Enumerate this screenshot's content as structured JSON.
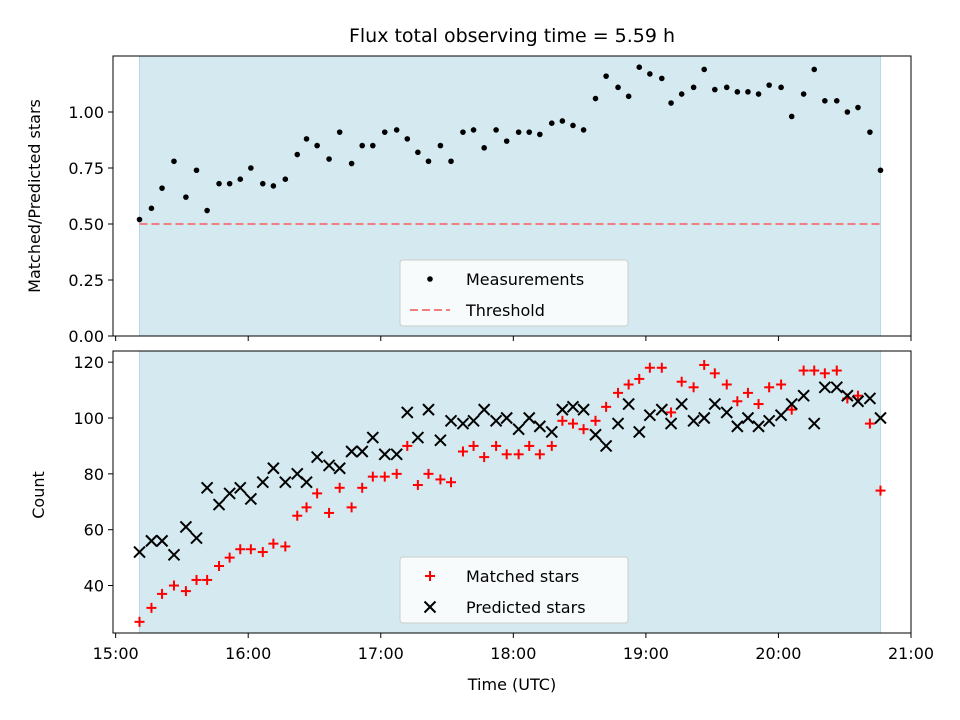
{
  "chart_data": [
    {
      "type": "scatter",
      "title": "Flux total observing time = 5.59 h",
      "xlabel": "",
      "ylabel": "Matched/Predicted stars",
      "x_unit": "hours (UTC clock time)",
      "xlim": [
        14.98,
        21.0
      ],
      "ylim": [
        0,
        1.25
      ],
      "yticks": [
        0.0,
        0.25,
        0.5,
        0.75,
        1.0
      ],
      "yticklabels": [
        "0.00",
        "0.25",
        "0.50",
        "0.75",
        "1.00"
      ],
      "shaded_span": [
        15.18,
        20.77
      ],
      "shaded_color": "#d4eaf0",
      "legend_position": "lower center",
      "series": [
        {
          "name": "Measurements",
          "marker": "dot",
          "color": "#000000",
          "points": [
            [
              15.18,
              0.52
            ],
            [
              15.27,
              0.57
            ],
            [
              15.35,
              0.66
            ],
            [
              15.44,
              0.78
            ],
            [
              15.53,
              0.62
            ],
            [
              15.61,
              0.74
            ],
            [
              15.69,
              0.56
            ],
            [
              15.78,
              0.68
            ],
            [
              15.86,
              0.68
            ],
            [
              15.94,
              0.7
            ],
            [
              16.02,
              0.75
            ],
            [
              16.11,
              0.68
            ],
            [
              16.19,
              0.67
            ],
            [
              16.28,
              0.7
            ],
            [
              16.37,
              0.81
            ],
            [
              16.44,
              0.88
            ],
            [
              16.52,
              0.85
            ],
            [
              16.61,
              0.79
            ],
            [
              16.69,
              0.91
            ],
            [
              16.78,
              0.77
            ],
            [
              16.86,
              0.85
            ],
            [
              16.94,
              0.85
            ],
            [
              17.03,
              0.91
            ],
            [
              17.12,
              0.92
            ],
            [
              17.2,
              0.88
            ],
            [
              17.28,
              0.82
            ],
            [
              17.36,
              0.78
            ],
            [
              17.45,
              0.85
            ],
            [
              17.53,
              0.78
            ],
            [
              17.62,
              0.91
            ],
            [
              17.7,
              0.92
            ],
            [
              17.78,
              0.84
            ],
            [
              17.87,
              0.92
            ],
            [
              17.95,
              0.87
            ],
            [
              18.04,
              0.91
            ],
            [
              18.12,
              0.91
            ],
            [
              18.2,
              0.9
            ],
            [
              18.29,
              0.95
            ],
            [
              18.37,
              0.96
            ],
            [
              18.45,
              0.94
            ],
            [
              18.53,
              0.92
            ],
            [
              18.62,
              1.06
            ],
            [
              18.7,
              1.16
            ],
            [
              18.79,
              1.11
            ],
            [
              18.87,
              1.07
            ],
            [
              18.95,
              1.2
            ],
            [
              19.03,
              1.17
            ],
            [
              19.12,
              1.15
            ],
            [
              19.19,
              1.04
            ],
            [
              19.27,
              1.08
            ],
            [
              19.36,
              1.11
            ],
            [
              19.44,
              1.19
            ],
            [
              19.52,
              1.1
            ],
            [
              19.61,
              1.11
            ],
            [
              19.69,
              1.09
            ],
            [
              19.77,
              1.09
            ],
            [
              19.85,
              1.08
            ],
            [
              19.93,
              1.12
            ],
            [
              20.02,
              1.11
            ],
            [
              20.1,
              0.98
            ],
            [
              20.19,
              1.08
            ],
            [
              20.27,
              1.19
            ],
            [
              20.35,
              1.05
            ],
            [
              20.44,
              1.05
            ],
            [
              20.52,
              1.0
            ],
            [
              20.6,
              1.02
            ],
            [
              20.69,
              0.91
            ],
            [
              20.77,
              0.74
            ]
          ]
        },
        {
          "name": "Threshold",
          "marker": "dashed-line",
          "color": "#f08080",
          "x": [
            15.18,
            20.77
          ],
          "y": [
            0.5,
            0.5
          ]
        }
      ]
    },
    {
      "type": "scatter",
      "title": "",
      "xlabel": "Time (UTC)",
      "ylabel": "Count",
      "x_unit": "hours (UTC clock time)",
      "xlim": [
        14.98,
        21.0
      ],
      "ylim": [
        23,
        124
      ],
      "xticks": [
        15,
        16,
        17,
        18,
        19,
        20,
        21
      ],
      "xticklabels": [
        "15:00",
        "16:00",
        "17:00",
        "18:00",
        "19:00",
        "20:00",
        "21:00"
      ],
      "yticks": [
        40,
        60,
        80,
        100,
        120
      ],
      "yticklabels": [
        "40",
        "60",
        "80",
        "100",
        "120"
      ],
      "shaded_span": [
        15.18,
        20.77
      ],
      "shaded_color": "#d4eaf0",
      "legend_position": "lower center",
      "series": [
        {
          "name": "Matched stars",
          "marker": "plus",
          "color": "#ff0000",
          "points": [
            [
              15.18,
              27
            ],
            [
              15.27,
              32
            ],
            [
              15.35,
              37
            ],
            [
              15.44,
              40
            ],
            [
              15.53,
              38
            ],
            [
              15.61,
              42
            ],
            [
              15.69,
              42
            ],
            [
              15.78,
              47
            ],
            [
              15.86,
              50
            ],
            [
              15.94,
              53
            ],
            [
              16.02,
              53
            ],
            [
              16.11,
              52
            ],
            [
              16.19,
              55
            ],
            [
              16.28,
              54
            ],
            [
              16.37,
              65
            ],
            [
              16.44,
              68
            ],
            [
              16.52,
              73
            ],
            [
              16.61,
              66
            ],
            [
              16.69,
              75
            ],
            [
              16.78,
              68
            ],
            [
              16.86,
              75
            ],
            [
              16.94,
              79
            ],
            [
              17.03,
              79
            ],
            [
              17.12,
              80
            ],
            [
              17.2,
              90
            ],
            [
              17.28,
              76
            ],
            [
              17.36,
              80
            ],
            [
              17.45,
              78
            ],
            [
              17.53,
              77
            ],
            [
              17.62,
              88
            ],
            [
              17.7,
              90
            ],
            [
              17.78,
              86
            ],
            [
              17.87,
              90
            ],
            [
              17.95,
              87
            ],
            [
              18.04,
              87
            ],
            [
              18.12,
              90
            ],
            [
              18.2,
              87
            ],
            [
              18.29,
              90
            ],
            [
              18.37,
              99
            ],
            [
              18.45,
              98
            ],
            [
              18.53,
              96
            ],
            [
              18.62,
              99
            ],
            [
              18.7,
              104
            ],
            [
              18.79,
              109
            ],
            [
              18.87,
              112
            ],
            [
              18.95,
              114
            ],
            [
              19.03,
              118
            ],
            [
              19.12,
              118
            ],
            [
              19.19,
              102
            ],
            [
              19.27,
              113
            ],
            [
              19.36,
              111
            ],
            [
              19.44,
              119
            ],
            [
              19.52,
              116
            ],
            [
              19.61,
              112
            ],
            [
              19.69,
              106
            ],
            [
              19.77,
              109
            ],
            [
              19.85,
              105
            ],
            [
              19.93,
              111
            ],
            [
              20.02,
              112
            ],
            [
              20.1,
              103
            ],
            [
              20.19,
              117
            ],
            [
              20.27,
              117
            ],
            [
              20.35,
              116
            ],
            [
              20.44,
              117
            ],
            [
              20.52,
              107
            ],
            [
              20.6,
              108
            ],
            [
              20.69,
              98
            ],
            [
              20.77,
              74
            ]
          ]
        },
        {
          "name": "Predicted stars",
          "marker": "x",
          "color": "#000000",
          "points": [
            [
              15.18,
              52
            ],
            [
              15.27,
              56
            ],
            [
              15.35,
              56
            ],
            [
              15.44,
              51
            ],
            [
              15.53,
              61
            ],
            [
              15.61,
              57
            ],
            [
              15.69,
              75
            ],
            [
              15.78,
              69
            ],
            [
              15.86,
              73
            ],
            [
              15.94,
              75
            ],
            [
              16.02,
              71
            ],
            [
              16.11,
              77
            ],
            [
              16.19,
              82
            ],
            [
              16.28,
              77
            ],
            [
              16.37,
              80
            ],
            [
              16.44,
              77
            ],
            [
              16.52,
              86
            ],
            [
              16.61,
              83
            ],
            [
              16.69,
              82
            ],
            [
              16.78,
              88
            ],
            [
              16.86,
              88
            ],
            [
              16.94,
              93
            ],
            [
              17.03,
              87
            ],
            [
              17.12,
              87
            ],
            [
              17.2,
              102
            ],
            [
              17.28,
              93
            ],
            [
              17.36,
              103
            ],
            [
              17.45,
              92
            ],
            [
              17.53,
              99
            ],
            [
              17.62,
              98
            ],
            [
              17.7,
              99
            ],
            [
              17.78,
              103
            ],
            [
              17.87,
              99
            ],
            [
              17.95,
              100
            ],
            [
              18.04,
              96
            ],
            [
              18.12,
              100
            ],
            [
              18.2,
              97
            ],
            [
              18.29,
              95
            ],
            [
              18.37,
              103
            ],
            [
              18.45,
              104
            ],
            [
              18.53,
              103
            ],
            [
              18.62,
              94
            ],
            [
              18.7,
              90
            ],
            [
              18.79,
              98
            ],
            [
              18.87,
              105
            ],
            [
              18.95,
              95
            ],
            [
              19.03,
              101
            ],
            [
              19.12,
              103
            ],
            [
              19.19,
              98
            ],
            [
              19.27,
              105
            ],
            [
              19.36,
              99
            ],
            [
              19.44,
              100
            ],
            [
              19.52,
              105
            ],
            [
              19.61,
              102
            ],
            [
              19.69,
              97
            ],
            [
              19.77,
              100
            ],
            [
              19.85,
              97
            ],
            [
              19.93,
              99
            ],
            [
              20.02,
              101
            ],
            [
              20.1,
              105
            ],
            [
              20.19,
              108
            ],
            [
              20.27,
              98
            ],
            [
              20.35,
              111
            ],
            [
              20.44,
              111
            ],
            [
              20.52,
              108
            ],
            [
              20.6,
              106
            ],
            [
              20.69,
              107
            ],
            [
              20.77,
              100
            ]
          ]
        }
      ]
    }
  ]
}
